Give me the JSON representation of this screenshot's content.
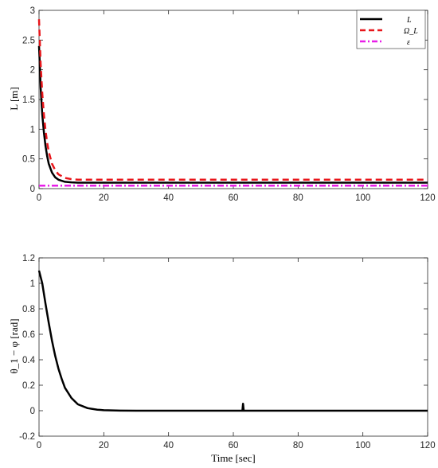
{
  "chart_data": [
    {
      "type": "line",
      "xlabel": "",
      "ylabel": "L [m]",
      "xlim": [
        0,
        120
      ],
      "ylim": [
        0,
        3
      ],
      "xticks": [
        0,
        20,
        40,
        60,
        80,
        100,
        120
      ],
      "yticks": [
        0,
        0.5,
        1,
        1.5,
        2,
        2.5,
        3
      ],
      "ytick_labels": [
        "0",
        "0.5",
        "1",
        "1.5",
        "2",
        "2.5",
        "3"
      ],
      "grid": false,
      "legend_position": "top-right",
      "series": [
        {
          "name": "L",
          "color": "#000000",
          "style": "solid",
          "x": [
            0,
            0.2,
            0.5,
            1,
            1.5,
            2,
            2.5,
            3,
            4,
            5,
            6,
            8,
            10,
            12,
            15,
            20,
            30,
            60,
            90,
            120
          ],
          "y": [
            2.4,
            2.15,
            1.7,
            1.25,
            0.95,
            0.72,
            0.55,
            0.42,
            0.27,
            0.19,
            0.15,
            0.115,
            0.105,
            0.1,
            0.1,
            0.1,
            0.1,
            0.1,
            0.1,
            0.1
          ]
        },
        {
          "name": "Ω_L",
          "color": "#e8161b",
          "style": "dashed",
          "x": [
            0,
            0.2,
            0.5,
            1,
            1.5,
            2,
            2.5,
            3,
            4,
            5,
            6,
            8,
            10,
            12,
            15,
            20,
            30,
            60,
            90,
            120
          ],
          "y": [
            2.85,
            2.55,
            2.1,
            1.6,
            1.25,
            0.98,
            0.78,
            0.62,
            0.42,
            0.31,
            0.24,
            0.18,
            0.16,
            0.15,
            0.15,
            0.15,
            0.15,
            0.15,
            0.15,
            0.15
          ]
        },
        {
          "name": "ε",
          "color": "#e81ee8",
          "style": "dashdot",
          "x": [
            0,
            120
          ],
          "y": [
            0.05,
            0.05
          ]
        }
      ]
    },
    {
      "type": "line",
      "xlabel": "Time [sec]",
      "ylabel": "θ_1 − φ [rad]",
      "xlim": [
        0,
        120
      ],
      "ylim": [
        -0.2,
        1.2
      ],
      "xticks": [
        0,
        20,
        40,
        60,
        80,
        100,
        120
      ],
      "yticks": [
        -0.2,
        0,
        0.2,
        0.4,
        0.6,
        0.8,
        1,
        1.2
      ],
      "ytick_labels": [
        "-0.2",
        "0",
        "0.2",
        "0.4",
        "0.6",
        "0.8",
        "1",
        "1.2"
      ],
      "grid": false,
      "series": [
        {
          "color": "#000000",
          "style": "solid",
          "x": [
            0,
            1,
            2,
            3,
            4,
            5,
            6,
            7,
            8,
            10,
            12,
            15,
            18,
            20,
            25,
            30,
            40,
            50,
            60,
            62.8,
            63,
            63.2,
            63.5,
            70,
            80,
            100,
            120
          ],
          "y": [
            1.1,
            1.0,
            0.84,
            0.69,
            0.55,
            0.43,
            0.33,
            0.25,
            0.18,
            0.1,
            0.05,
            0.02,
            0.008,
            0.004,
            0.001,
            0.0,
            0.0,
            0.0,
            0.0,
            0.0,
            0.055,
            0.0,
            0.0,
            0.0,
            0.0,
            0.0,
            0.0
          ]
        }
      ]
    }
  ]
}
